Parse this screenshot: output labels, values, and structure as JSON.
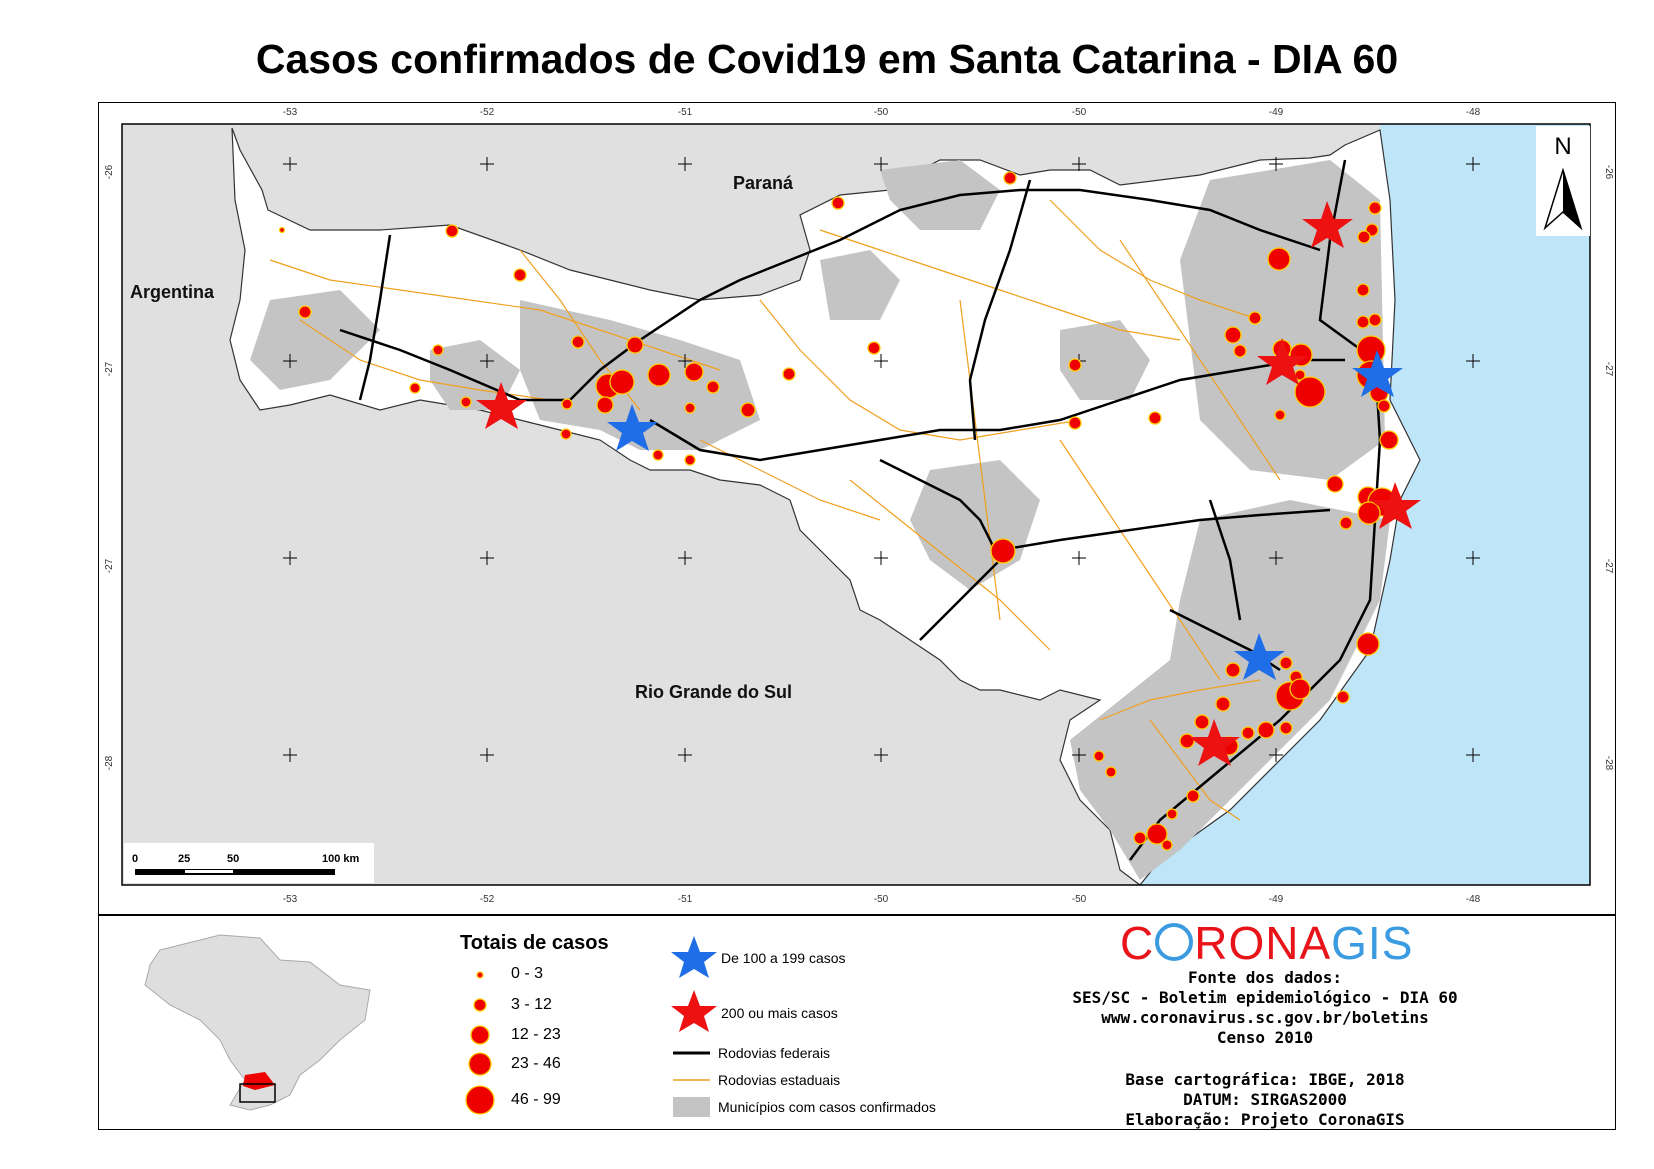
{
  "title": "Casos confirmados de Covid19 em Santa Catarina - DIA 60",
  "map": {
    "lon_ticks": [
      "-53",
      "-52",
      "-51",
      "-50",
      "-50",
      "-49",
      "-48"
    ],
    "lat_ticks_left": [
      "-26",
      "-27",
      "-27",
      "-28"
    ],
    "lat_ticks_right": [
      "-26",
      "-27",
      "-27",
      "-28"
    ],
    "regions": {
      "parana": "Paraná",
      "argentina": "Argentina",
      "rs": "Rio Grande do Sul"
    },
    "north": "N",
    "scale": {
      "l0": "0",
      "l25": "25",
      "l50": "50",
      "l100": "100 km"
    },
    "colors": {
      "ocean": "#bfe6f8",
      "outside": "#e0e0e0",
      "state": "#ffffff",
      "municipality": "#c4c4c4",
      "federal_road": "#000000",
      "state_road": "#f0a020",
      "case": "#ee0000",
      "case_stroke": "#ffcc00",
      "star_red": "#ee1111",
      "star_blue": "#1f6ee8"
    }
  },
  "legend": {
    "title": "Totais de casos",
    "classes": [
      "0 - 3",
      "3 - 12",
      "12 - 23",
      "23 - 46",
      "46 - 99"
    ],
    "star_blue": "De 100 a 199 casos",
    "star_red": "200 ou mais casos",
    "federal_roads": "Rodovias federais",
    "state_roads": "Rodovias estaduais",
    "municipalities": "Municípios com casos confirmados"
  },
  "brand": {
    "text_red": "C",
    "text_mid": "RONA",
    "text_blue": "GIS",
    "red": "#e8141a",
    "blue": "#3a9be0"
  },
  "source": {
    "heading": "Fonte dos dados:",
    "line1": "SES/SC - Boletim epidemiológico - DIA 60",
    "line2": "www.coronavirus.sc.gov.br/boletins",
    "line3": "Censo 2010",
    "base": "Base cartográfica: IBGE, 2018",
    "datum": "DATUM: SIRGAS2000",
    "credit": "Elaboração: Projeto CoronaGIS"
  }
}
